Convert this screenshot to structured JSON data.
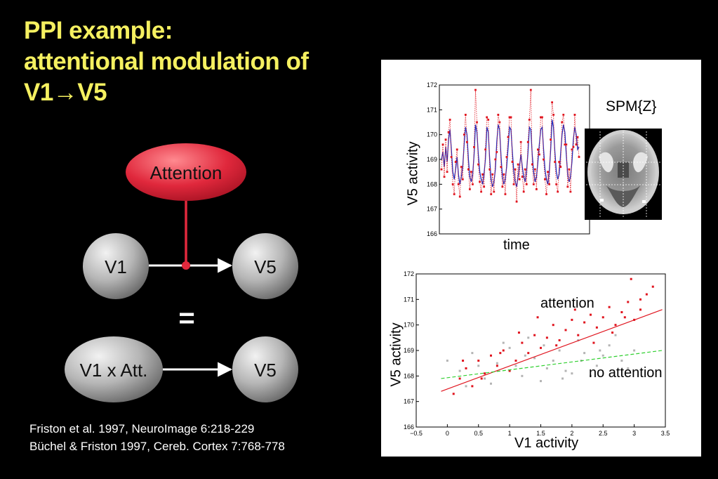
{
  "title": {
    "line1": "PPI example:",
    "line2": "attentional modulation of",
    "line3": "V1→V5"
  },
  "diagram": {
    "attention_label": "Attention",
    "v1_label": "V1",
    "v5_top_label": "V5",
    "equals": "=",
    "interaction_label": "V1 x Att.",
    "v5_bottom_label": "V5",
    "colors": {
      "attention": "#e0283c",
      "node": "#c8c8c8",
      "arrow": "#ffffff",
      "title": "#f5f060"
    }
  },
  "citations": [
    "Friston et al. 1997, NeuroImage 6:218-229",
    "Büchel & Friston 1997, Cereb. Cortex 7:768-778"
  ],
  "brain_label": "SPM{Z}",
  "chart_data": [
    {
      "type": "line",
      "xlabel": "time",
      "ylabel": "V5 activity",
      "ylim": [
        166,
        172
      ],
      "yticks": [
        "172",
        "171",
        "170",
        "169",
        "168",
        "167",
        "166"
      ],
      "series": [
        {
          "color": "#2030c0",
          "style": "solid",
          "values": [
            169.0,
            169.3,
            168.7,
            169.5,
            168.9,
            169.8,
            170.2,
            169.4,
            168.5,
            168.2,
            168.6,
            169.1,
            168.4,
            168.0,
            168.3,
            168.7,
            169.6,
            170.3,
            170.0,
            169.0,
            168.3,
            168.1,
            168.4,
            169.2,
            170.4,
            170.1,
            169.2,
            168.5,
            168.2,
            168.0,
            168.4,
            169.0,
            170.3,
            170.1,
            169.0,
            168.2,
            167.9,
            168.1,
            168.6,
            169.7,
            170.4,
            170.2,
            169.1,
            168.3,
            168.0,
            168.2,
            168.7,
            169.5,
            170.3,
            170.2,
            169.3,
            168.5,
            168.1,
            167.9,
            168.3,
            168.7,
            169.2,
            168.7,
            168.3,
            168.1,
            168.5,
            169.3,
            170.3,
            170.2,
            169.2,
            168.5,
            168.1,
            168.3,
            168.9,
            169.6,
            170.2,
            170.3,
            169.4,
            168.6,
            168.2,
            168.0,
            168.5,
            169.4,
            170.6,
            170.3,
            169.3,
            168.5,
            168.2,
            168.4,
            169.2,
            170.0,
            170.4,
            170.1,
            169.2,
            168.4,
            168.1,
            168.3,
            168.9,
            169.8,
            170.3,
            170.0,
            169.4,
            169.5
          ]
        },
        {
          "color": "#e0141e",
          "style": "dotted",
          "values": [
            168.6,
            169.6,
            168.3,
            169.8,
            168.5,
            170.1,
            170.6,
            169.1,
            168.0,
            167.6,
            168.9,
            169.4,
            168.0,
            167.5,
            168.7,
            168.2,
            170.0,
            170.8,
            169.7,
            168.6,
            167.8,
            168.5,
            168.0,
            169.5,
            171.8,
            170.5,
            168.8,
            168.1,
            167.7,
            168.4,
            167.9,
            169.4,
            170.7,
            170.6,
            168.6,
            167.6,
            168.4,
            167.7,
            169.0,
            169.3,
            170.8,
            170.5,
            168.7,
            167.9,
            168.4,
            167.6,
            169.1,
            169.9,
            170.7,
            170.7,
            168.9,
            168.0,
            168.6,
            167.3,
            168.8,
            168.2,
            169.7,
            168.3,
            167.7,
            168.6,
            168.0,
            169.7,
            170.6,
            171.8,
            168.8,
            168.0,
            168.6,
            167.8,
            169.4,
            169.2,
            170.7,
            170.7,
            169.0,
            168.2,
            167.6,
            168.5,
            168.0,
            169.8,
            171.3,
            170.8,
            168.9,
            168.0,
            167.7,
            168.9,
            168.7,
            170.5,
            170.8,
            169.6,
            169.6,
            167.9,
            168.6,
            167.7,
            169.4,
            169.5,
            170.8,
            169.6,
            169.9,
            169.1
          ]
        }
      ]
    },
    {
      "type": "scatter",
      "xlabel": "V1 activity",
      "ylabel": "V5 activity",
      "xlim": [
        -0.5,
        3.5
      ],
      "ylim": [
        166,
        172
      ],
      "xticks": [
        "−0.5",
        "0",
        "0.5",
        "1",
        "1.5",
        "2",
        "2.5",
        "3",
        "3.5"
      ],
      "yticks": [
        "172",
        "171",
        "170",
        "169",
        "168",
        "167",
        "166"
      ],
      "annotations": {
        "attention": "attention",
        "no_attention": "no attention"
      },
      "series": [
        {
          "color": "#e0141e",
          "points": [
            [
              0.1,
              167.3
            ],
            [
              0.2,
              167.9
            ],
            [
              0.3,
              168.3
            ],
            [
              0.4,
              167.6
            ],
            [
              0.5,
              168.6
            ],
            [
              0.6,
              168.1
            ],
            [
              0.7,
              168.8
            ],
            [
              0.8,
              168.4
            ],
            [
              0.9,
              169.0
            ],
            [
              1.0,
              168.2
            ],
            [
              1.1,
              168.6
            ],
            [
              1.2,
              169.3
            ],
            [
              1.3,
              168.9
            ],
            [
              1.4,
              169.6
            ],
            [
              1.5,
              169.1
            ],
            [
              1.6,
              169.5
            ],
            [
              1.7,
              170.0
            ],
            [
              1.8,
              169.4
            ],
            [
              1.9,
              169.8
            ],
            [
              2.0,
              170.2
            ],
            [
              2.1,
              169.6
            ],
            [
              2.2,
              170.1
            ],
            [
              2.3,
              170.4
            ],
            [
              2.4,
              169.9
            ],
            [
              2.5,
              170.3
            ],
            [
              2.6,
              170.7
            ],
            [
              2.7,
              170.0
            ],
            [
              2.8,
              170.5
            ],
            [
              2.9,
              170.9
            ],
            [
              3.0,
              170.2
            ],
            [
              3.1,
              170.6
            ],
            [
              3.2,
              171.2
            ],
            [
              3.3,
              171.5
            ],
            [
              3.1,
              171.0
            ],
            [
              2.95,
              171.8
            ],
            [
              0.25,
              168.6
            ],
            [
              0.55,
              167.9
            ],
            [
              0.85,
              168.9
            ],
            [
              1.15,
              169.7
            ],
            [
              1.45,
              170.3
            ],
            [
              1.75,
              169.2
            ],
            [
              2.05,
              170.6
            ],
            [
              2.35,
              169.3
            ],
            [
              2.65,
              169.7
            ],
            [
              2.85,
              170.3
            ]
          ]
        },
        {
          "color": "#b4b4b4",
          "points": [
            [
              0.0,
              168.6
            ],
            [
              0.2,
              168.2
            ],
            [
              0.4,
              168.9
            ],
            [
              0.6,
              167.9
            ],
            [
              0.8,
              168.5
            ],
            [
              1.0,
              169.1
            ],
            [
              1.2,
              168.0
            ],
            [
              1.4,
              168.7
            ],
            [
              1.6,
              168.3
            ],
            [
              1.8,
              169.0
            ],
            [
              2.0,
              168.1
            ],
            [
              2.2,
              168.9
            ],
            [
              2.4,
              168.4
            ],
            [
              2.6,
              169.2
            ],
            [
              2.8,
              168.6
            ],
            [
              3.0,
              169.0
            ],
            [
              0.3,
              167.6
            ],
            [
              0.7,
              167.7
            ],
            [
              1.1,
              168.4
            ],
            [
              1.3,
              169.5
            ],
            [
              1.5,
              167.8
            ],
            [
              1.7,
              168.6
            ],
            [
              1.9,
              168.2
            ],
            [
              2.1,
              169.4
            ],
            [
              2.3,
              168.0
            ],
            [
              2.5,
              168.8
            ],
            [
              2.7,
              169.6
            ],
            [
              2.9,
              168.3
            ],
            [
              0.5,
              168.4
            ],
            [
              0.9,
              169.3
            ],
            [
              1.25,
              168.8
            ],
            [
              1.55,
              169.2
            ],
            [
              1.85,
              167.9
            ],
            [
              2.15,
              168.6
            ],
            [
              2.45,
              169.0
            ]
          ]
        }
      ],
      "fits": [
        {
          "color": "#e0141e",
          "style": "solid",
          "x": [
            -0.1,
            3.45
          ],
          "y": [
            167.4,
            170.6
          ]
        },
        {
          "color": "#30d030",
          "style": "dashed",
          "x": [
            -0.1,
            3.45
          ],
          "y": [
            167.9,
            169.0
          ]
        }
      ]
    }
  ]
}
